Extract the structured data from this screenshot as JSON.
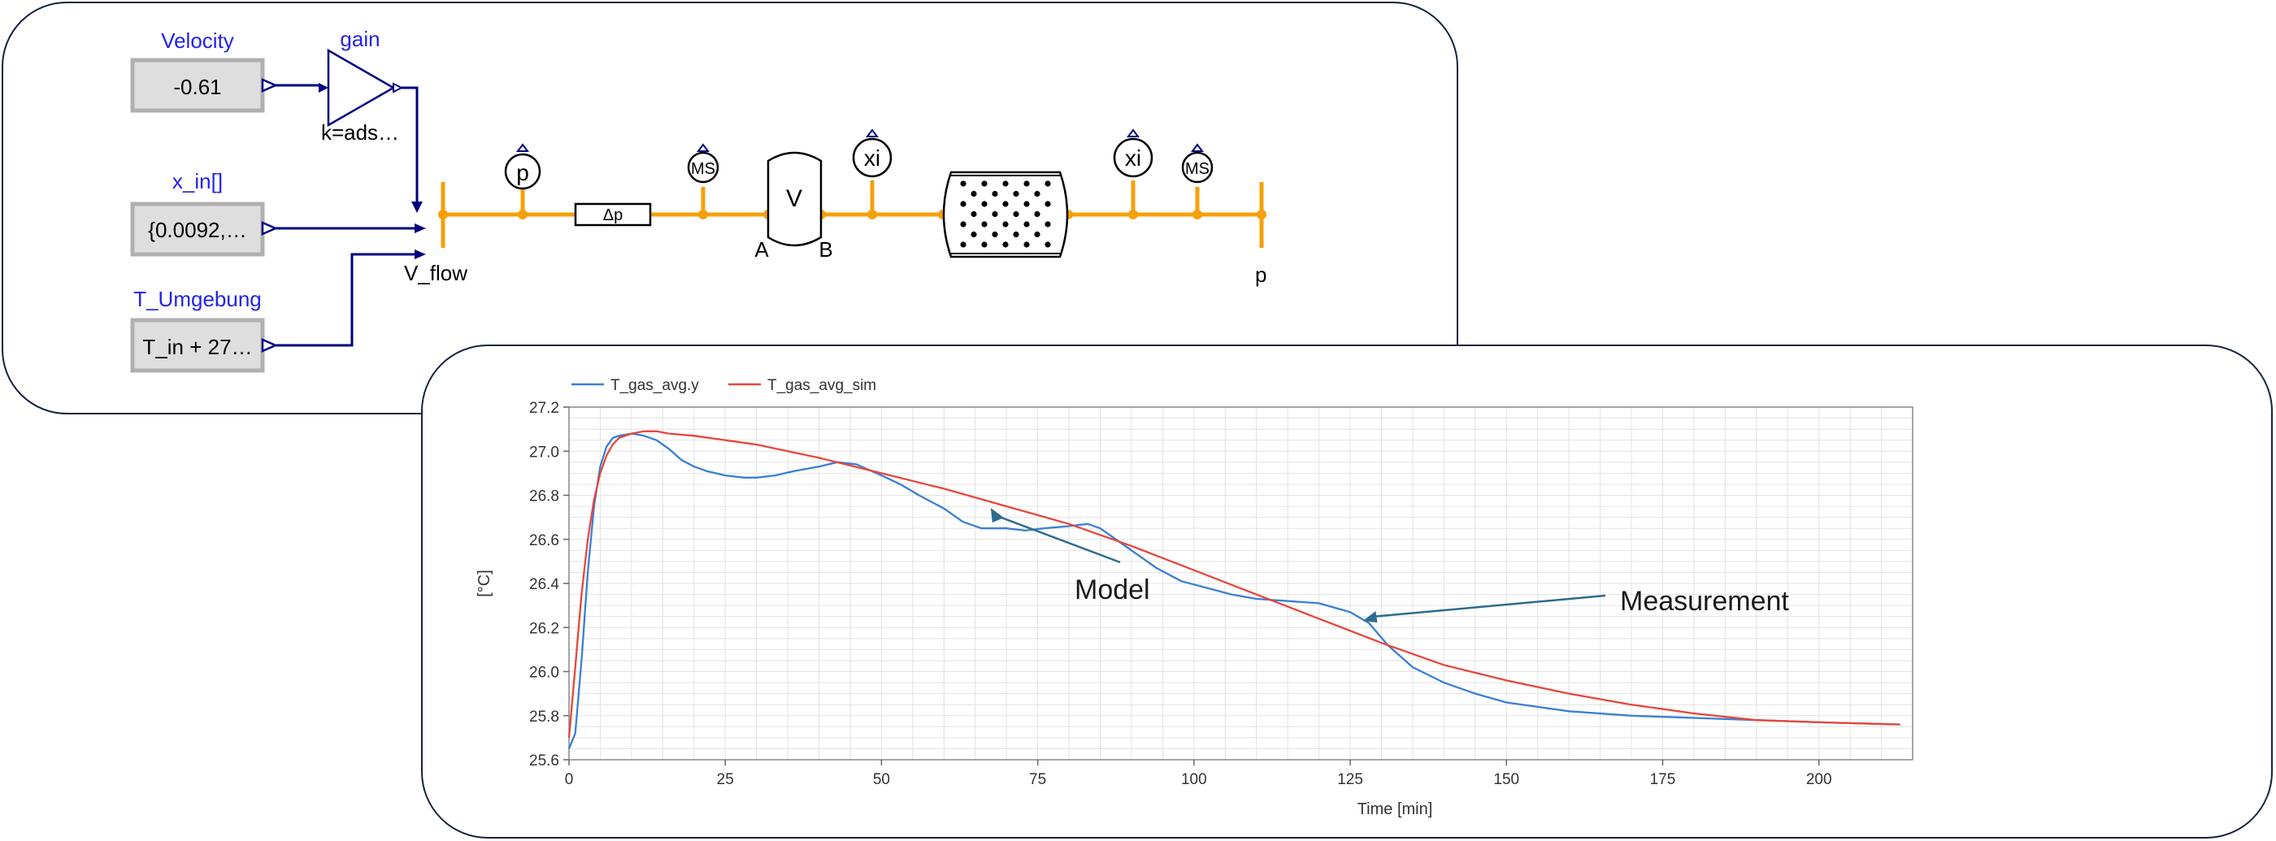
{
  "diagram": {
    "sources": [
      {
        "label": "Velocity",
        "value": "-0.61"
      },
      {
        "label": "x_in[]",
        "value": "{0.0092,…"
      },
      {
        "label": "T_Umgebung",
        "value": "T_in + 27…"
      }
    ],
    "gain": {
      "label": "gain",
      "parameter": "k=ads…"
    },
    "ports": {
      "left": "V_flow",
      "right": "p",
      "a": "A",
      "b": "B"
    },
    "sensors": {
      "pressure": "p",
      "ms1": "MS",
      "xi1": "xi",
      "xi2": "xi",
      "ms2": "MS"
    },
    "pressure_drop": "Δp",
    "volume": "V",
    "colors": {
      "flow_line": "#f5a00a",
      "signal_line": "#000080",
      "label_blue": "#2222ee"
    }
  },
  "chart_data": {
    "type": "line",
    "legend": [
      "T_gas_avg.y",
      "T_gas_avg_sim"
    ],
    "legend_position": "top-left",
    "xlabel": "Time [min]",
    "ylabel": "[°C]",
    "xlim": [
      0,
      215
    ],
    "ylim": [
      25.6,
      27.2
    ],
    "xticks": [
      "0",
      "25",
      "50",
      "75",
      "100",
      "125",
      "150",
      "175",
      "200"
    ],
    "yticks": [
      "25.6",
      "25.8",
      "26.0",
      "26.2",
      "26.4",
      "26.6",
      "26.8",
      "27.0",
      "27.2"
    ],
    "grid": true,
    "series": [
      {
        "name": "T_gas_avg.y",
        "color": "#3a7fd5",
        "x": [
          0,
          1,
          2,
          3,
          4,
          5,
          6,
          7,
          8,
          10,
          12,
          14,
          16,
          18,
          20,
          22,
          25,
          28,
          30,
          33,
          36,
          40,
          43,
          46,
          50,
          53,
          56,
          60,
          63,
          66,
          70,
          73,
          76,
          80,
          83,
          85,
          88,
          91,
          94,
          98,
          102,
          106,
          110,
          115,
          120,
          125,
          128,
          131,
          135,
          140,
          145,
          150,
          160,
          170,
          180,
          190,
          200,
          213
        ],
        "y": [
          25.65,
          25.72,
          26.05,
          26.45,
          26.75,
          26.93,
          27.02,
          27.06,
          27.07,
          27.08,
          27.07,
          27.05,
          27.01,
          26.96,
          26.93,
          26.91,
          26.89,
          26.88,
          26.88,
          26.89,
          26.91,
          26.93,
          26.95,
          26.94,
          26.89,
          26.85,
          26.8,
          26.74,
          26.68,
          26.65,
          26.65,
          26.64,
          26.65,
          26.66,
          26.67,
          26.65,
          26.59,
          26.53,
          26.47,
          26.41,
          26.38,
          26.35,
          26.33,
          26.32,
          26.31,
          26.27,
          26.22,
          26.12,
          26.02,
          25.95,
          25.9,
          25.86,
          25.82,
          25.8,
          25.79,
          25.78,
          25.77,
          25.76
        ]
      },
      {
        "name": "T_gas_avg_sim",
        "color": "#e8463c",
        "x": [
          0,
          1,
          2,
          3,
          4,
          5,
          6,
          7,
          8,
          10,
          12,
          14,
          16,
          20,
          25,
          30,
          40,
          50,
          60,
          70,
          80,
          90,
          100,
          110,
          120,
          130,
          140,
          150,
          160,
          170,
          180,
          190,
          200,
          213
        ],
        "y": [
          25.7,
          26.02,
          26.35,
          26.6,
          26.78,
          26.9,
          26.98,
          27.03,
          27.06,
          27.08,
          27.09,
          27.09,
          27.08,
          27.07,
          27.05,
          27.03,
          26.97,
          26.9,
          26.83,
          26.75,
          26.67,
          26.57,
          26.46,
          26.35,
          26.24,
          26.13,
          26.03,
          25.96,
          25.9,
          25.85,
          25.81,
          25.78,
          25.77,
          25.76
        ]
      }
    ],
    "annotations": [
      {
        "text": "Model",
        "x": 68,
        "y": 26.75
      },
      {
        "text": "Measurement",
        "x": 127,
        "y": 26.23
      }
    ]
  }
}
